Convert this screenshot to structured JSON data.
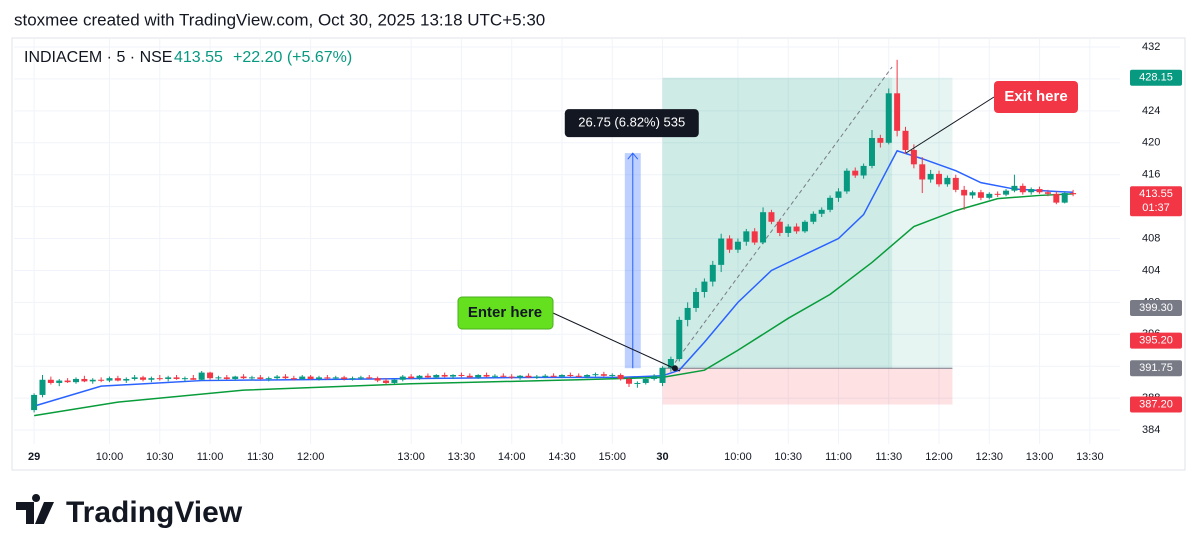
{
  "header": {
    "caption": "stoxmee created with TradingView.com, Oct 30, 2025 13:18 UTC+5:30"
  },
  "chart_data": {
    "type": "candlestick",
    "symbol": "INDIACEM · 5 · NSE",
    "last": "413.55",
    "change": "+22.20 (+5.67%)",
    "up_color": "#089981",
    "down_color": "#f23645",
    "grid": true,
    "xlim": [
      -2.4,
      129.6
    ],
    "ylim": [
      382.25,
      433.13
    ],
    "yticks": [
      384,
      388,
      392,
      396,
      400,
      404,
      408,
      412,
      416,
      420,
      424,
      428,
      432
    ],
    "xticks": [
      {
        "value": 0,
        "label": "29"
      },
      {
        "value": 9,
        "label": "10:00"
      },
      {
        "value": 15,
        "label": "10:30"
      },
      {
        "value": 21,
        "label": "11:00"
      },
      {
        "value": 27,
        "label": "11:30"
      },
      {
        "value": 33,
        "label": "12:00"
      },
      {
        "value": 45,
        "label": "13:00"
      },
      {
        "value": 51,
        "label": "13:30"
      },
      {
        "value": 57,
        "label": "14:00"
      },
      {
        "value": 63,
        "label": "14:30"
      },
      {
        "value": 69,
        "label": "15:00"
      },
      {
        "value": 75,
        "label": "30"
      },
      {
        "value": 84,
        "label": "10:00"
      },
      {
        "value": 90,
        "label": "10:30"
      },
      {
        "value": 96,
        "label": "11:00"
      },
      {
        "value": 102,
        "label": "11:30"
      },
      {
        "value": 108,
        "label": "12:00"
      },
      {
        "value": 114,
        "label": "12:30"
      },
      {
        "value": 120,
        "label": "13:00"
      },
      {
        "value": 126,
        "label": "13:30"
      }
    ],
    "ohlc": [
      [
        386.5,
        388.6,
        386.2,
        388.4
      ],
      [
        388.4,
        390.9,
        388.1,
        390.3
      ],
      [
        390.3,
        390.7,
        389.7,
        389.9
      ],
      [
        389.9,
        390.4,
        389.5,
        390.2
      ],
      [
        390.2,
        390.5,
        389.9,
        390.0
      ],
      [
        390.0,
        390.6,
        389.8,
        390.4
      ],
      [
        390.4,
        390.8,
        390.0,
        390.1
      ],
      [
        390.1,
        390.5,
        389.8,
        390.3
      ],
      [
        390.3,
        390.6,
        390.0,
        390.2
      ],
      [
        390.2,
        390.7,
        390.0,
        390.5
      ],
      [
        390.5,
        390.8,
        390.1,
        390.2
      ],
      [
        390.2,
        390.6,
        389.9,
        390.4
      ],
      [
        390.4,
        390.9,
        390.2,
        390.6
      ],
      [
        390.6,
        390.8,
        390.1,
        390.3
      ],
      [
        390.3,
        390.7,
        390.0,
        390.5
      ],
      [
        390.5,
        390.9,
        390.2,
        390.4
      ],
      [
        390.4,
        390.8,
        390.1,
        390.6
      ],
      [
        390.6,
        390.9,
        390.3,
        390.4
      ],
      [
        390.4,
        390.7,
        390.1,
        390.5
      ],
      [
        390.5,
        390.9,
        390.3,
        390.3
      ],
      [
        390.3,
        391.4,
        390.2,
        391.2
      ],
      [
        391.2,
        391.3,
        390.3,
        390.5
      ],
      [
        390.5,
        390.8,
        390.2,
        390.6
      ],
      [
        390.6,
        390.9,
        390.3,
        390.4
      ],
      [
        390.4,
        390.8,
        390.2,
        390.7
      ],
      [
        390.7,
        391.0,
        390.4,
        390.5
      ],
      [
        390.5,
        390.8,
        390.2,
        390.6
      ],
      [
        390.6,
        390.9,
        390.3,
        390.4
      ],
      [
        390.4,
        390.7,
        390.1,
        390.5
      ],
      [
        390.5,
        390.9,
        390.3,
        390.7
      ],
      [
        390.7,
        391.0,
        390.4,
        390.5
      ],
      [
        390.5,
        390.8,
        390.2,
        390.4
      ],
      [
        390.4,
        390.9,
        390.3,
        390.7
      ],
      [
        390.7,
        390.9,
        390.3,
        390.4
      ],
      [
        390.4,
        390.8,
        390.2,
        390.6
      ],
      [
        390.6,
        390.9,
        390.3,
        390.5
      ],
      [
        390.5,
        390.8,
        390.3,
        390.6
      ],
      [
        390.6,
        390.8,
        390.2,
        390.4
      ],
      [
        390.4,
        390.7,
        390.2,
        390.5
      ],
      [
        390.5,
        390.8,
        390.3,
        390.6
      ],
      [
        390.6,
        390.9,
        390.4,
        390.5
      ],
      [
        390.5,
        390.7,
        390.0,
        390.2
      ],
      [
        390.2,
        390.5,
        389.7,
        389.9
      ],
      [
        389.9,
        390.4,
        389.7,
        390.3
      ],
      [
        390.3,
        390.9,
        390.1,
        390.7
      ],
      [
        390.7,
        391.0,
        390.4,
        390.5
      ],
      [
        390.5,
        390.9,
        390.3,
        390.8
      ],
      [
        390.8,
        391.1,
        390.5,
        390.6
      ],
      [
        390.6,
        391.0,
        390.4,
        390.9
      ],
      [
        390.9,
        391.2,
        390.6,
        390.7
      ],
      [
        390.7,
        391.0,
        390.4,
        390.9
      ],
      [
        390.9,
        391.2,
        390.6,
        390.8
      ],
      [
        390.8,
        391.1,
        390.5,
        390.6
      ],
      [
        390.6,
        391.0,
        390.4,
        390.9
      ],
      [
        390.9,
        391.2,
        390.6,
        390.7
      ],
      [
        390.7,
        391.0,
        390.5,
        390.8
      ],
      [
        390.8,
        391.1,
        390.6,
        390.7
      ],
      [
        390.7,
        391.0,
        390.4,
        390.6
      ],
      [
        390.6,
        390.9,
        390.3,
        390.8
      ],
      [
        390.8,
        391.1,
        390.5,
        390.6
      ],
      [
        390.6,
        390.9,
        390.4,
        390.7
      ],
      [
        390.7,
        391.0,
        390.5,
        390.8
      ],
      [
        390.8,
        391.1,
        390.6,
        390.7
      ],
      [
        390.7,
        391.0,
        390.5,
        390.9
      ],
      [
        390.9,
        391.2,
        390.6,
        390.8
      ],
      [
        390.8,
        391.1,
        390.6,
        390.7
      ],
      [
        390.7,
        391.0,
        390.5,
        390.9
      ],
      [
        390.9,
        391.2,
        390.7,
        391.0
      ],
      [
        391.0,
        391.3,
        390.7,
        390.8
      ],
      [
        390.8,
        391.1,
        390.5,
        390.9
      ],
      [
        390.9,
        391.1,
        390.2,
        390.4
      ],
      [
        390.4,
        390.6,
        389.4,
        389.8
      ],
      [
        389.8,
        390.1,
        389.3,
        389.9
      ],
      [
        389.9,
        390.6,
        389.7,
        390.4
      ],
      [
        390.4,
        391.0,
        390.2,
        390.8
      ],
      [
        389.9,
        392.0,
        389.5,
        391.8
      ],
      [
        391.8,
        393.2,
        391.3,
        392.9
      ],
      [
        392.9,
        398.2,
        392.6,
        397.8
      ],
      [
        397.8,
        400.0,
        397.0,
        399.3
      ],
      [
        399.3,
        401.8,
        398.8,
        401.3
      ],
      [
        401.3,
        403.0,
        400.6,
        402.6
      ],
      [
        402.6,
        405.2,
        402.0,
        404.7
      ],
      [
        404.7,
        408.6,
        403.8,
        408.0
      ],
      [
        408.0,
        408.4,
        406.2,
        406.6
      ],
      [
        406.6,
        408.0,
        406.2,
        407.6
      ],
      [
        407.6,
        409.2,
        407.1,
        408.9
      ],
      [
        408.9,
        409.3,
        407.2,
        407.5
      ],
      [
        407.5,
        411.9,
        407.3,
        411.3
      ],
      [
        411.3,
        411.6,
        409.8,
        410.1
      ],
      [
        410.1,
        410.4,
        408.3,
        408.7
      ],
      [
        408.7,
        409.8,
        408.2,
        409.5
      ],
      [
        409.5,
        409.9,
        408.6,
        408.9
      ],
      [
        408.9,
        410.3,
        408.7,
        410.1
      ],
      [
        410.1,
        411.4,
        409.8,
        411.1
      ],
      [
        411.1,
        411.9,
        410.7,
        411.6
      ],
      [
        411.6,
        413.4,
        411.3,
        413.1
      ],
      [
        413.1,
        414.3,
        412.6,
        413.9
      ],
      [
        413.9,
        416.8,
        413.6,
        416.5
      ],
      [
        416.5,
        416.9,
        415.6,
        415.9
      ],
      [
        415.9,
        417.4,
        415.5,
        417.1
      ],
      [
        417.1,
        421.6,
        416.8,
        420.6
      ],
      [
        420.6,
        421.0,
        419.4,
        420.0
      ],
      [
        420.0,
        426.8,
        419.8,
        426.2
      ],
      [
        426.2,
        430.4,
        420.8,
        421.5
      ],
      [
        421.5,
        422.0,
        418.6,
        419.1
      ],
      [
        419.1,
        419.8,
        416.8,
        417.3
      ],
      [
        417.3,
        418.2,
        413.7,
        415.4
      ],
      [
        415.4,
        416.6,
        415.0,
        416.1
      ],
      [
        416.1,
        416.5,
        414.5,
        414.8
      ],
      [
        414.8,
        415.9,
        414.5,
        415.6
      ],
      [
        415.6,
        416.0,
        413.8,
        414.1
      ],
      [
        414.1,
        414.6,
        411.6,
        413.4
      ],
      [
        413.4,
        414.0,
        413.0,
        413.8
      ],
      [
        413.8,
        414.1,
        412.8,
        413.1
      ],
      [
        413.1,
        413.8,
        412.9,
        413.6
      ],
      [
        413.6,
        413.9,
        413.2,
        413.5
      ],
      [
        413.5,
        414.2,
        413.3,
        414.0
      ],
      [
        414.0,
        416.0,
        413.8,
        414.6
      ],
      [
        414.6,
        414.9,
        413.5,
        413.8
      ],
      [
        413.8,
        414.4,
        413.5,
        414.2
      ],
      [
        414.2,
        414.5,
        413.6,
        413.8
      ],
      [
        413.8,
        414.1,
        413.3,
        413.6
      ],
      [
        413.6,
        413.9,
        412.3,
        412.5
      ],
      [
        412.5,
        413.9,
        412.4,
        413.7
      ],
      [
        413.7,
        414.1,
        413.3,
        413.55
      ]
    ],
    "lines": [
      {
        "color": "#2962ff",
        "x": [
          0,
          8,
          20,
          40,
          60,
          70,
          75,
          77,
          80,
          84,
          88,
          92,
          96,
          99,
          101,
          103,
          106,
          110,
          113,
          117,
          122,
          124
        ],
        "values": [
          387.0,
          389.5,
          390.2,
          390.4,
          390.6,
          390.6,
          390.8,
          391.5,
          395.0,
          400.0,
          404.0,
          406.0,
          408.0,
          411.0,
          415.0,
          419.0,
          418.0,
          416.5,
          415.0,
          414.2,
          413.9,
          413.8
        ]
      },
      {
        "color": "#089c3a",
        "x": [
          0,
          10,
          25,
          45,
          65,
          75,
          80,
          84,
          90,
          95,
          100,
          105,
          110,
          115,
          120,
          124
        ],
        "values": [
          385.8,
          387.5,
          389.0,
          389.8,
          390.3,
          390.6,
          391.5,
          394.0,
          398.0,
          401.0,
          405.0,
          409.5,
          411.5,
          413.0,
          413.4,
          413.6
        ]
      }
    ],
    "position": {
      "entry": 391.75,
      "target": 428.15,
      "stop": 387.2,
      "start": 75,
      "close_bar": 102.4,
      "end": 109.6,
      "path_x": [
        76,
        102.4
      ],
      "path_y": [
        391.75,
        429.5
      ]
    },
    "measure": {
      "label": "26.75 (6.82%) 535",
      "from": 391.75,
      "to": 418.7,
      "bars": [
        70.5,
        72.4
      ]
    },
    "price_labels": [
      {
        "value": 428.15,
        "label": "428.15",
        "color": "#089981"
      },
      {
        "value": 413.55,
        "label": "413.55",
        "color": "#f23645",
        "countdown": "01:37"
      },
      {
        "value": 399.3,
        "label": "399.30",
        "color": "#787b86"
      },
      {
        "value": 395.2,
        "label": "395.20",
        "color": "#f23645"
      },
      {
        "value": 391.75,
        "label": "391.75",
        "color": "#787b86"
      },
      {
        "value": 387.2,
        "label": "387.20",
        "color": "#f23645"
      }
    ],
    "annotations": {
      "enter": "Enter here",
      "exit": "Exit here"
    }
  },
  "footer": {
    "logo": "TradingView"
  }
}
